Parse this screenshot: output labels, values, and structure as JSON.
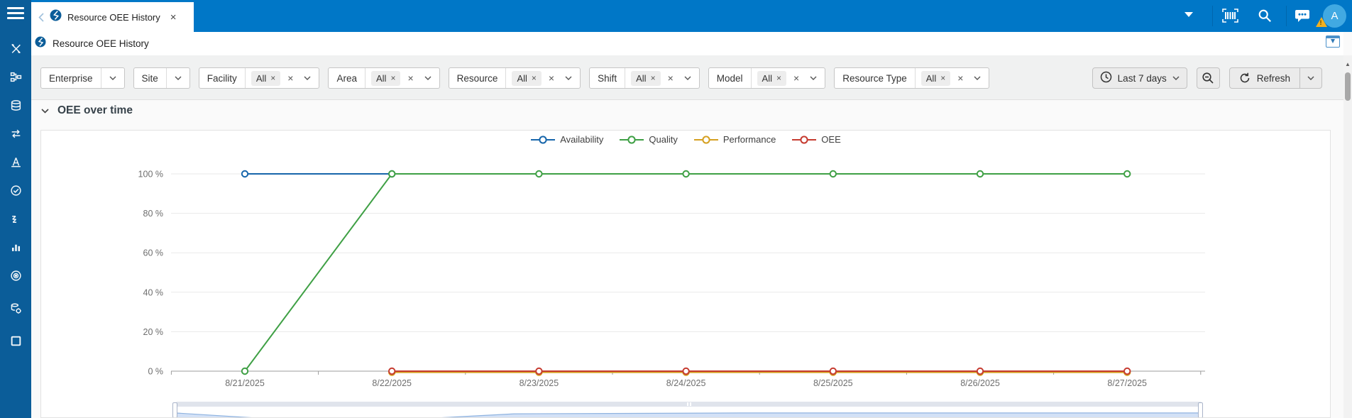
{
  "topbar": {
    "tab_title": "Resource OEE History",
    "close_glyph": "×",
    "avatar_initial": "A"
  },
  "breadcrumb": {
    "title": "Resource OEE History"
  },
  "sidebar": {
    "icons": [
      "tools",
      "workflow",
      "database",
      "data-exchange",
      "cone",
      "quality-check",
      "process-steps",
      "bar-chart",
      "target",
      "data-services",
      "window"
    ]
  },
  "filters": {
    "items": [
      {
        "label": "Enterprise",
        "type": "simple"
      },
      {
        "label": "Site",
        "type": "simple"
      },
      {
        "label": "Facility",
        "type": "multi",
        "chip": "All"
      },
      {
        "label": "Area",
        "type": "multi",
        "chip": "All"
      },
      {
        "label": "Resource",
        "type": "multi",
        "chip": "All"
      },
      {
        "label": "Shift",
        "type": "multi",
        "chip": "All"
      },
      {
        "label": "Model",
        "type": "multi",
        "chip": "All"
      },
      {
        "label": "Resource Type",
        "type": "multi",
        "chip": "All"
      }
    ]
  },
  "toolbar": {
    "time_range_label": "Last 7 days",
    "refresh_label": "Refresh"
  },
  "section": {
    "title": "OEE over time"
  },
  "colors": {
    "sidebar": "#0b5d99",
    "topbar": "#0077c7",
    "availability": "#1766ab",
    "quality": "#3fa045",
    "performance": "#d5a021",
    "oee": "#c63b30",
    "grid": "#eaeaea",
    "axis": "#9c9c9c",
    "axis_text": "#6e6e6e"
  },
  "chart_data": {
    "type": "line",
    "title": "OEE over time",
    "x": [
      "8/21/2025",
      "8/22/2025",
      "8/23/2025",
      "8/24/2025",
      "8/25/2025",
      "8/26/2025",
      "8/27/2025"
    ],
    "y_ticks": [
      "0 %",
      "20 %",
      "40 %",
      "60 %",
      "80 %",
      "100 %"
    ],
    "ylim": [
      0,
      100
    ],
    "grid": true,
    "legend_position": "top-center",
    "series": [
      {
        "name": "Availability",
        "color": "#1766ab",
        "values": [
          100,
          100,
          null,
          null,
          null,
          null,
          null
        ]
      },
      {
        "name": "Quality",
        "color": "#3fa045",
        "values": [
          0,
          100,
          100,
          100,
          100,
          100,
          100
        ]
      },
      {
        "name": "Performance",
        "color": "#d5a021",
        "values": [
          null,
          0,
          0,
          0,
          0,
          0,
          0
        ]
      },
      {
        "name": "OEE",
        "color": "#c63b30",
        "values": [
          null,
          0,
          0,
          0,
          0,
          0,
          0
        ]
      }
    ],
    "navigator": {
      "points": [
        [
          0,
          0.33
        ],
        [
          0.16,
          0.93
        ],
        [
          0.33,
          0.38
        ],
        [
          0.55,
          0.33
        ],
        [
          1,
          0.33
        ]
      ]
    }
  }
}
